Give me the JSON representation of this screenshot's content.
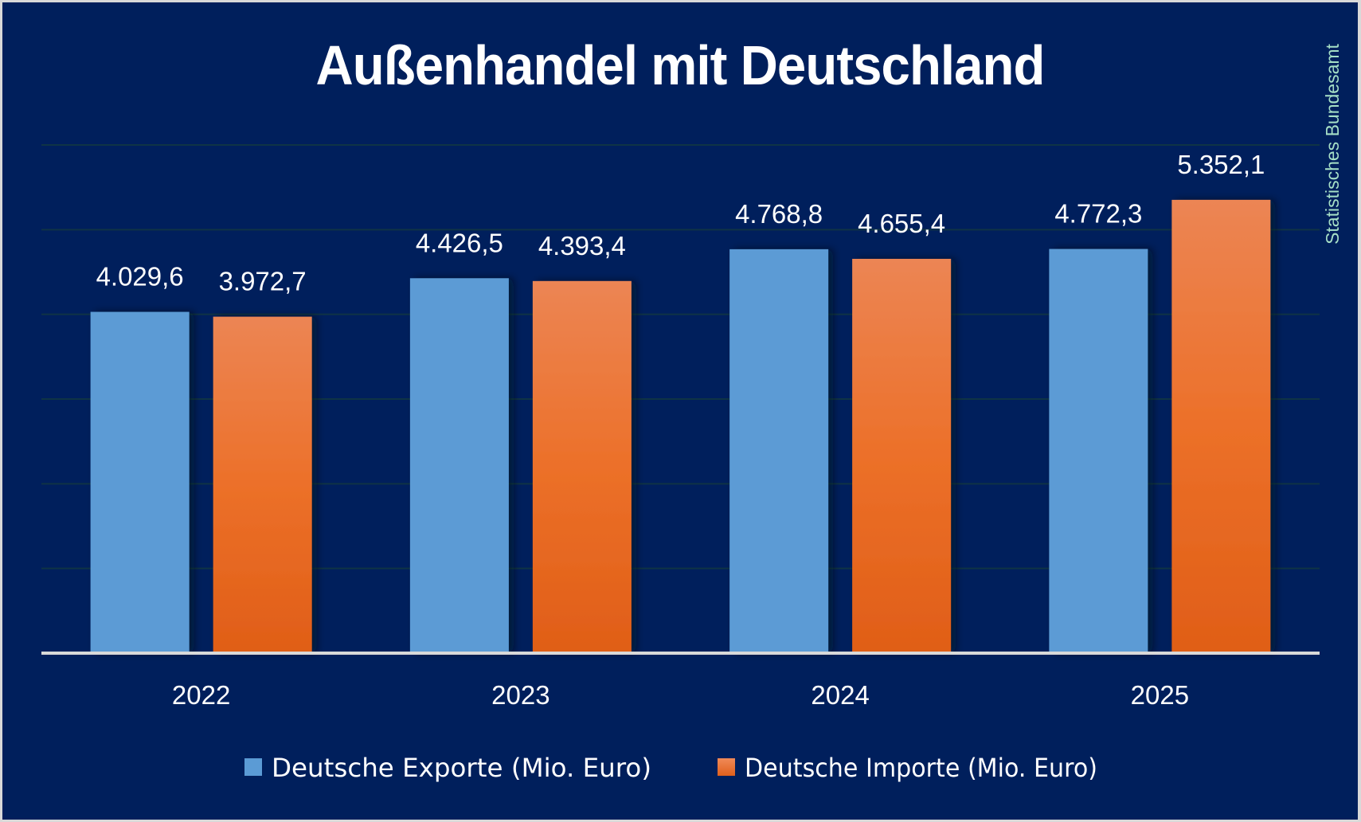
{
  "chart_data": {
    "type": "bar",
    "title": "Außenhandel mit Deutschland",
    "source_label": "Statistisches Bundesamt",
    "categories": [
      "2022",
      "2023",
      "2024",
      "2025"
    ],
    "series": [
      {
        "name": "Deutsche Exporte (Mio. Euro)",
        "color": "#5b9bd5",
        "values": [
          4029.6,
          4426.5,
          4768.8,
          4772.3
        ],
        "labels": [
          "4.029,6",
          "4.426,5",
          "4.768,8",
          "4.772,3"
        ]
      },
      {
        "name": "Deutsche Importe (Mio. Euro)",
        "color": "#ec8554",
        "color_bottom": "#e05e17",
        "values": [
          3972.7,
          4393.4,
          4655.4,
          5352.1
        ],
        "labels": [
          "3.972,7",
          "4.393,4",
          "4.655,4",
          "5.352,1"
        ]
      }
    ],
    "xlabel": "",
    "ylabel": "",
    "ylim": [
      0,
      6000
    ],
    "ytick_step": 1000,
    "grid": true,
    "y_axis_labels_shown": false,
    "legend_position": "bottom",
    "colors": {
      "background": "#001f5c",
      "gridline": "#0f3345",
      "baseline": "#d9d9d9",
      "text": "#ffffff",
      "source_text": "#a6dfc6"
    }
  }
}
